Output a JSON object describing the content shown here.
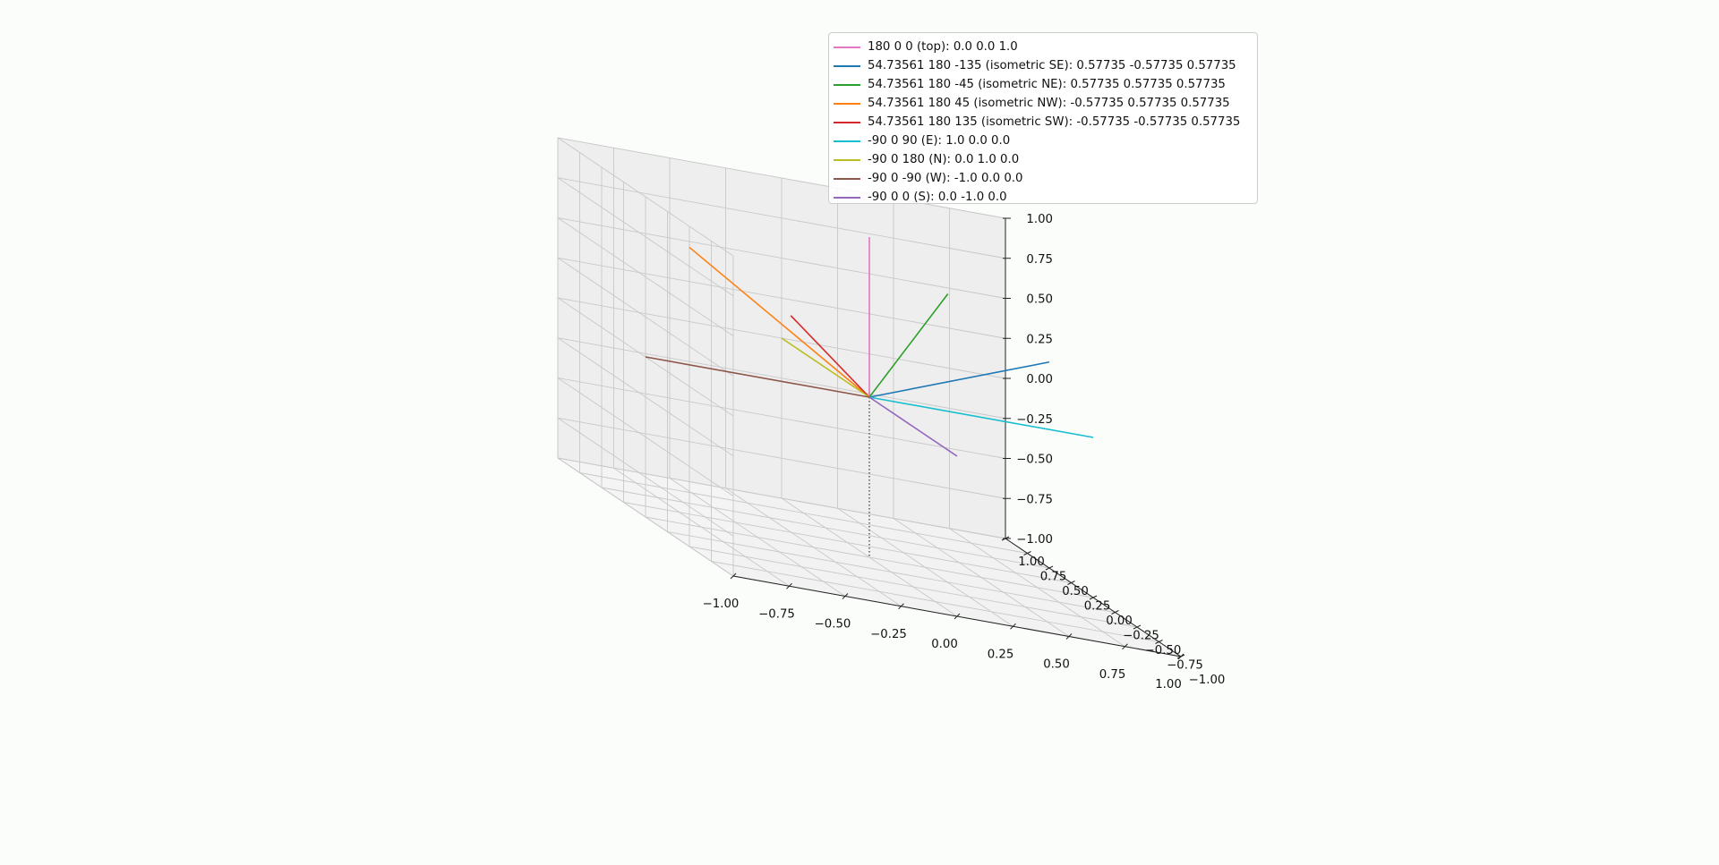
{
  "chart_data": {
    "type": "line",
    "projection": "3d",
    "grid": true,
    "legend_position": "top-right",
    "xlim": [
      -1,
      1
    ],
    "ylim": [
      -1,
      1
    ],
    "zlim": [
      -1,
      1
    ],
    "x_ticks": [
      "−1.00",
      "−0.75",
      "−0.50",
      "−0.25",
      "0.00",
      "0.25",
      "0.50",
      "0.75",
      "1.00"
    ],
    "y_ticks": [
      "−1.00",
      "−0.75",
      "−0.50",
      "−0.25",
      "0.00",
      "0.25",
      "0.50",
      "0.75",
      "1.00"
    ],
    "z_ticks": [
      "−1.00",
      "−0.75",
      "−0.50",
      "−0.25",
      "0.00",
      "0.25",
      "0.50",
      "0.75",
      "1.00"
    ],
    "series": [
      {
        "name": "180 0 0 (top): 0.0 0.0 1.0",
        "color": "#e377c2",
        "from": [
          0,
          0,
          0
        ],
        "to": [
          0.0,
          0.0,
          1.0
        ]
      },
      {
        "name": "54.73561 180 -135 (isometric SE): 0.57735 -0.57735 0.57735",
        "color": "#1f77b4",
        "from": [
          0,
          0,
          0
        ],
        "to": [
          0.57735,
          -0.57735,
          0.57735
        ]
      },
      {
        "name": "54.73561 180 -45 (isometric NE): 0.57735 0.57735 0.57735",
        "color": "#2ca02c",
        "from": [
          0,
          0,
          0
        ],
        "to": [
          0.57735,
          0.57735,
          0.57735
        ]
      },
      {
        "name": "54.73561 180 45 (isometric NW): -0.57735 0.57735 0.57735",
        "color": "#ff7f0e",
        "from": [
          0,
          0,
          0
        ],
        "to": [
          -0.57735,
          0.57735,
          0.57735
        ]
      },
      {
        "name": "54.73561 180 135 (isometric SW): -0.57735 -0.57735 0.57735",
        "color": "#d62728",
        "from": [
          0,
          0,
          0
        ],
        "to": [
          -0.57735,
          -0.57735,
          0.57735
        ]
      },
      {
        "name": "-90 0 90 (E): 1.0 0.0 0.0",
        "color": "#17becf",
        "from": [
          0,
          0,
          0
        ],
        "to": [
          1.0,
          0.0,
          0.0
        ]
      },
      {
        "name": "-90 0 180 (N): 0.0 1.0 0.0",
        "color": "#bcbd22",
        "from": [
          0,
          0,
          0
        ],
        "to": [
          0.0,
          1.0,
          0.0
        ]
      },
      {
        "name": "-90 0 -90 (W): -1.0 0.0 0.0",
        "color": "#8c564b",
        "from": [
          0,
          0,
          0
        ],
        "to": [
          -1.0,
          0.0,
          0.0
        ]
      },
      {
        "name": "-90 0 0 (S): 0.0 -1.0 0.0",
        "color": "#9467bd",
        "from": [
          0,
          0,
          0
        ],
        "to": [
          0.0,
          -1.0,
          0.0
        ]
      }
    ],
    "reference_line": {
      "from": [
        0,
        0,
        0
      ],
      "to": [
        0,
        0,
        -1
      ],
      "style": "dotted",
      "color": "#555555"
    }
  }
}
